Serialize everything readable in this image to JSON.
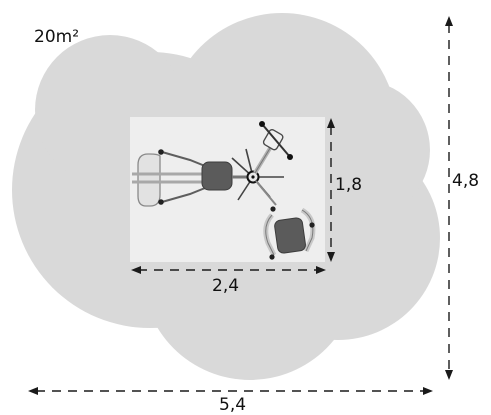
{
  "diagram": {
    "area_label": "20m²",
    "footprint_width": "2,4",
    "footprint_depth": "1,8",
    "total_width": "5,4",
    "total_depth": "4,8",
    "colors": {
      "safety_zone": "#d9d9d9",
      "footprint": "#eeeeee",
      "dimension_line": "#1a1a1a",
      "seat": "#5c5c5c",
      "frame": "#d8d8d8"
    }
  }
}
